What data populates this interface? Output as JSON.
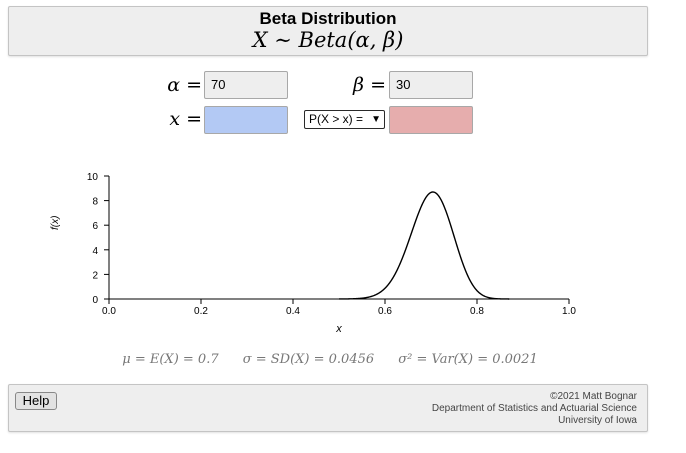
{
  "header": {
    "title": "Beta Distribution",
    "formula": "X ∼ Beta(α, β)"
  },
  "params": {
    "alpha_label": "α",
    "alpha_value": "70",
    "beta_label": "β",
    "beta_value": "30",
    "x_label": "x",
    "x_value": "",
    "prob_select": "P(X > x) =",
    "prob_value": ""
  },
  "chart_data": {
    "type": "line",
    "xlabel": "x",
    "ylabel": "f(x)",
    "xlim": [
      0,
      1
    ],
    "ylim": [
      0,
      10
    ],
    "x_ticks": [
      "0.0",
      "0.2",
      "0.4",
      "0.6",
      "0.8",
      "1.0"
    ],
    "y_ticks": [
      "0",
      "2",
      "4",
      "6",
      "8",
      "10"
    ],
    "series": [
      {
        "distribution": "beta",
        "alpha": 70,
        "beta": 30,
        "mode_x": 0.703,
        "peak_density": 8.7,
        "color": "#000000"
      }
    ],
    "grid": false
  },
  "stats": {
    "mean": "μ = E(X) = 0.7",
    "sd": "σ = SD(X) = 0.0456",
    "var": "σ² = Var(X) = 0.0021"
  },
  "footer": {
    "help_label": "Help",
    "copyright": "©2021 Matt Bognar",
    "dept": "Department of Statistics and Actuarial Science",
    "univ": "University of Iowa"
  }
}
